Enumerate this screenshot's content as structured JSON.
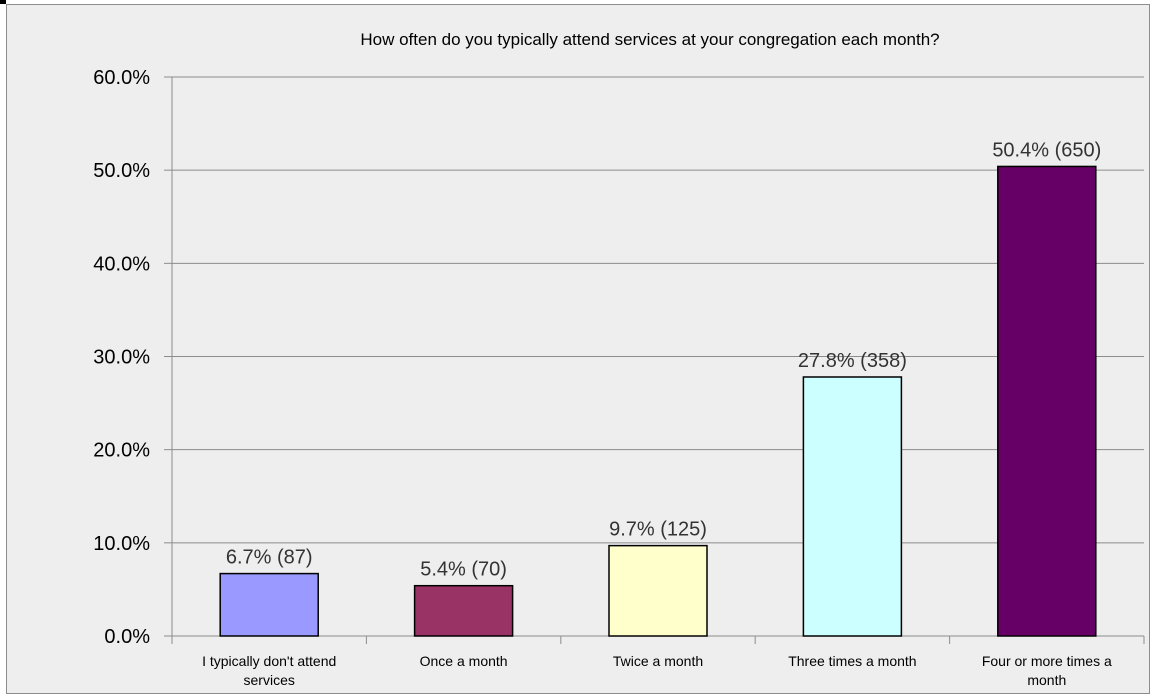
{
  "chart_data": {
    "type": "bar",
    "title": "How often do you typically attend services at your congregation each month?",
    "categories": [
      [
        "I typically don't attend",
        "services"
      ],
      [
        "Once a month"
      ],
      [
        "Twice a month"
      ],
      [
        "Three times a month"
      ],
      [
        "Four or more times a",
        "month"
      ]
    ],
    "values": [
      6.7,
      5.4,
      9.7,
      27.8,
      50.4
    ],
    "counts": [
      87,
      70,
      125,
      358,
      650
    ],
    "data_labels": [
      "6.7% (87)",
      "5.4% (70)",
      "9.7% (125)",
      "27.8% (358)",
      "50.4% (650)"
    ],
    "bar_colors": [
      "#9999ff",
      "#993366",
      "#ffffcc",
      "#ccffff",
      "#660066"
    ],
    "ylim": [
      0,
      60
    ],
    "yticks": [
      0,
      10,
      20,
      30,
      40,
      50,
      60
    ],
    "ytick_labels": [
      "0.0%",
      "10.0%",
      "20.0%",
      "30.0%",
      "40.0%",
      "50.0%",
      "60.0%"
    ],
    "xlabel": "",
    "ylabel": "",
    "grid": true,
    "legend": "none"
  }
}
